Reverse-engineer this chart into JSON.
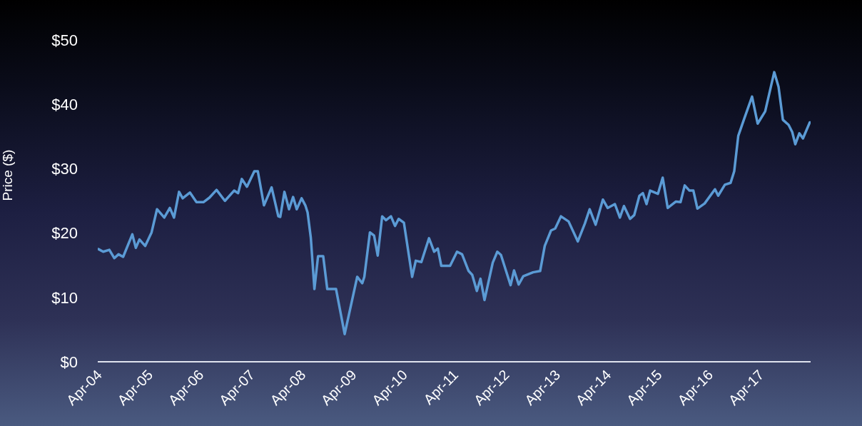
{
  "chart_data": {
    "type": "line",
    "ylabel": "Price ($)",
    "xlim": [
      "2004-03-15",
      "2018-03-15"
    ],
    "xticks": [
      {
        "value": "2004-04-01",
        "label": "Apr-04"
      },
      {
        "value": "2005-04-01",
        "label": "Apr-05"
      },
      {
        "value": "2006-04-01",
        "label": "Apr-06"
      },
      {
        "value": "2007-04-01",
        "label": "Apr-07"
      },
      {
        "value": "2008-04-01",
        "label": "Apr-08"
      },
      {
        "value": "2009-04-01",
        "label": "Apr-09"
      },
      {
        "value": "2010-04-01",
        "label": "Apr-10"
      },
      {
        "value": "2011-04-01",
        "label": "Apr-11"
      },
      {
        "value": "2012-04-01",
        "label": "Apr-12"
      },
      {
        "value": "2013-04-01",
        "label": "Apr-13"
      },
      {
        "value": "2014-04-01",
        "label": "Apr-14"
      },
      {
        "value": "2015-04-01",
        "label": "Apr-15"
      },
      {
        "value": "2016-04-01",
        "label": "Apr-16"
      },
      {
        "value": "2017-04-01",
        "label": "Apr-17"
      }
    ],
    "ylim": [
      0,
      50
    ],
    "yticks": [
      {
        "value": 0,
        "label": "$0"
      },
      {
        "value": 10,
        "label": "$10"
      },
      {
        "value": 20,
        "label": "$20"
      },
      {
        "value": 30,
        "label": "$30"
      },
      {
        "value": 40,
        "label": "$40"
      },
      {
        "value": 50,
        "label": "$50"
      }
    ],
    "series": [
      {
        "color": "#5b9bd5",
        "x": [
          "2004-03-20",
          "2004-04-23",
          "2004-06-06",
          "2004-07-12",
          "2004-08-11",
          "2004-09-13",
          "2004-11-18",
          "2004-12-13",
          "2005-01-08",
          "2005-02-18",
          "2005-04-05",
          "2005-05-14",
          "2005-07-05",
          "2005-08-14",
          "2005-09-13",
          "2005-10-19",
          "2005-11-14",
          "2006-01-05",
          "2006-02-21",
          "2006-04-12",
          "2006-05-25",
          "2006-07-15",
          "2006-09-13",
          "2006-11-18",
          "2006-12-17",
          "2007-01-12",
          "2007-02-18",
          "2007-04-12",
          "2007-05-07",
          "2007-06-20",
          "2007-08-14",
          "2007-10-01",
          "2007-10-15",
          "2007-11-14",
          "2007-12-17",
          "2008-01-15",
          "2008-02-10",
          "2008-03-16",
          "2008-04-12",
          "2008-04-28",
          "2008-05-21",
          "2008-06-16",
          "2008-07-12",
          "2008-08-18",
          "2008-09-16",
          "2008-11-18",
          "2009-01-19",
          "2009-04-19",
          "2009-05-25",
          "2009-06-09",
          "2009-07-19",
          "2009-08-18",
          "2009-09-13",
          "2009-10-15",
          "2009-11-11",
          "2009-12-17",
          "2010-01-15",
          "2010-02-10",
          "2010-03-20",
          "2010-05-18",
          "2010-06-13",
          "2010-07-23",
          "2010-09-16",
          "2010-10-23",
          "2010-11-18",
          "2010-12-13",
          "2011-02-14",
          "2011-04-05",
          "2011-05-11",
          "2011-06-27",
          "2011-07-23",
          "2011-08-25",
          "2011-09-20",
          "2011-10-19",
          "2011-12-17",
          "2012-01-19",
          "2012-02-14",
          "2012-04-23",
          "2012-05-18",
          "2012-06-20",
          "2012-07-23",
          "2012-10-01",
          "2012-11-21",
          "2012-12-24",
          "2013-02-07",
          "2013-03-09",
          "2013-04-19",
          "2013-06-13",
          "2013-08-18",
          "2013-10-08",
          "2013-11-11",
          "2013-12-24",
          "2014-02-14",
          "2014-03-20",
          "2014-05-11",
          "2014-06-16",
          "2014-07-15",
          "2014-08-28",
          "2014-09-27",
          "2014-11-03",
          "2014-11-28",
          "2014-12-24",
          "2015-01-19",
          "2015-03-16",
          "2015-04-19",
          "2015-05-25",
          "2015-07-23",
          "2015-08-25",
          "2015-09-24",
          "2015-10-28",
          "2015-11-25",
          "2015-12-24",
          "2016-02-14",
          "2016-04-28",
          "2016-05-21",
          "2016-07-08",
          "2016-08-18",
          "2016-09-13",
          "2016-10-12",
          "2016-11-21",
          "2017-01-19",
          "2017-02-28",
          "2017-04-23",
          "2017-06-27",
          "2017-07-28",
          "2017-08-28",
          "2017-10-08",
          "2017-11-03",
          "2017-11-25",
          "2017-12-24",
          "2018-01-19",
          "2018-03-09"
        ],
        "values": [
          17.5,
          17.1,
          17.4,
          16.1,
          16.7,
          16.3,
          19.8,
          17.7,
          19.0,
          18.0,
          20.1,
          23.7,
          22.4,
          23.9,
          22.4,
          26.4,
          25.4,
          26.3,
          24.8,
          24.8,
          25.5,
          26.7,
          25.0,
          26.6,
          26.2,
          28.4,
          27.2,
          29.6,
          29.6,
          24.3,
          27.1,
          22.6,
          22.5,
          26.4,
          23.7,
          25.6,
          23.7,
          25.4,
          24.3,
          23.2,
          19.3,
          11.3,
          16.4,
          16.4,
          11.3,
          11.3,
          4.3,
          13.2,
          12.2,
          13.2,
          20.1,
          19.6,
          16.5,
          22.6,
          22.0,
          22.6,
          21.1,
          22.2,
          21.6,
          13.2,
          15.7,
          15.5,
          19.2,
          17.1,
          17.6,
          14.9,
          14.9,
          17.1,
          16.7,
          14.1,
          13.5,
          11.0,
          12.9,
          9.6,
          15.4,
          17.1,
          16.6,
          11.9,
          14.2,
          12.0,
          13.3,
          13.9,
          14.1,
          18.0,
          20.4,
          20.7,
          22.6,
          21.8,
          18.7,
          21.5,
          23.7,
          21.3,
          25.2,
          23.9,
          24.5,
          22.4,
          24.2,
          22.2,
          22.8,
          25.8,
          26.2,
          24.5,
          26.6,
          26.1,
          28.6,
          23.9,
          24.9,
          24.8,
          27.4,
          26.6,
          26.6,
          23.8,
          24.6,
          26.8,
          25.8,
          27.5,
          27.8,
          29.6,
          35.1,
          37.6,
          41.2,
          37.0,
          38.9,
          45.0,
          42.7,
          37.6,
          36.8,
          35.7,
          33.8,
          35.5,
          34.7,
          37.2
        ]
      }
    ]
  }
}
